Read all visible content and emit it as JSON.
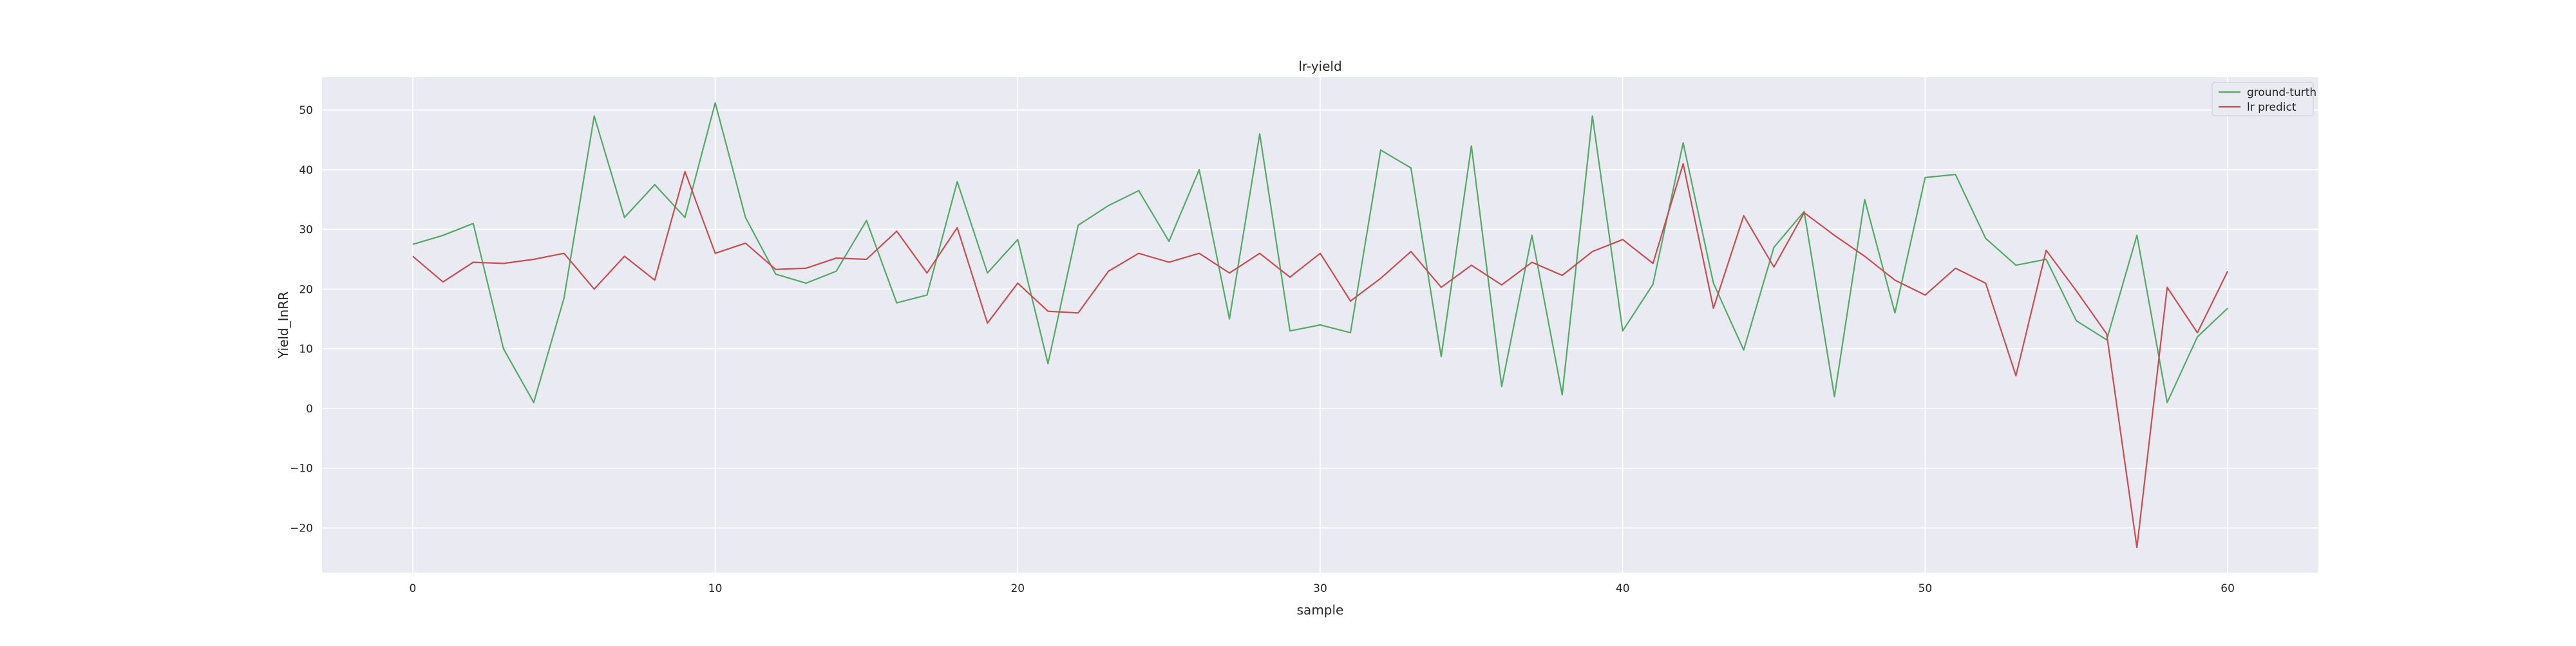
{
  "chart_data": {
    "type": "line",
    "title": "lr-yield",
    "xlabel": "sample",
    "ylabel": "Yield_InRR",
    "xlim": [
      -3,
      63
    ],
    "ylim": [
      -27.5,
      55.5
    ],
    "xticks": [
      0,
      10,
      20,
      30,
      40,
      50,
      60
    ],
    "yticks": [
      -20,
      -10,
      0,
      10,
      20,
      30,
      40,
      50
    ],
    "ytick_labels": [
      "−20",
      "−10",
      "0",
      "10",
      "20",
      "30",
      "40",
      "50"
    ],
    "grid": true,
    "legend_position": "top-right",
    "x": [
      0,
      1,
      2,
      3,
      4,
      5,
      6,
      7,
      8,
      9,
      10,
      11,
      12,
      13,
      14,
      15,
      16,
      17,
      18,
      19,
      20,
      21,
      22,
      23,
      24,
      25,
      26,
      27,
      28,
      29,
      30,
      31,
      32,
      33,
      34,
      35,
      36,
      37,
      38,
      39,
      40,
      41,
      42,
      43,
      44,
      45,
      46,
      47,
      48,
      49,
      50,
      51,
      52,
      53,
      54,
      55,
      56,
      57,
      58,
      59,
      60
    ],
    "series": [
      {
        "name": "ground-turth",
        "color": "#55a868",
        "values": [
          27.5,
          29,
          31,
          10,
          1,
          18.5,
          49,
          32,
          37.5,
          32,
          51.2,
          32,
          22.5,
          21,
          23,
          31.5,
          17.7,
          19,
          38,
          22.7,
          28.3,
          7.5,
          30.7,
          34,
          36.5,
          28,
          40,
          15,
          46,
          13,
          14,
          12.7,
          43.3,
          40.3,
          8.7,
          44,
          3.7,
          29,
          2.3,
          49,
          13,
          20.8,
          44.5,
          21,
          9.8,
          27,
          33,
          2,
          35,
          16,
          38.7,
          39.2,
          28.5,
          24,
          25,
          14.7,
          11.5,
          29,
          1,
          12,
          16.8
        ]
      },
      {
        "name": "lr predict",
        "color": "#c44e52",
        "values": [
          25.5,
          21.2,
          24.5,
          24.3,
          25,
          26,
          20,
          25.5,
          21.5,
          39.7,
          26,
          27.7,
          23.3,
          23.5,
          25.2,
          25,
          29.7,
          22.7,
          30.3,
          14.3,
          21,
          16.3,
          16,
          23,
          26,
          24.5,
          26,
          22.7,
          26,
          22,
          26,
          18,
          21.8,
          26.3,
          20.3,
          24,
          20.7,
          24.5,
          22.3,
          26.3,
          28.3,
          24.3,
          41,
          16.8,
          32.3,
          23.7,
          32.8,
          29,
          25.5,
          21.5,
          19,
          23.5,
          21,
          5.5,
          26.5,
          19.7,
          12.5,
          -23.3,
          20.3,
          12.7,
          23
        ]
      }
    ]
  },
  "style": {
    "plot_bg": "#eaeaf2",
    "grid_color": "#ffffff"
  }
}
